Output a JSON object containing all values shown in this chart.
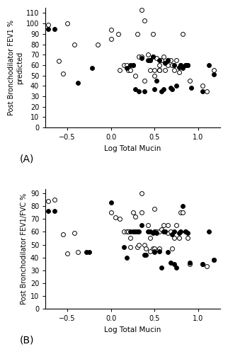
{
  "plot_A": {
    "xlabel": "Log Total Mucin",
    "ylabel": "Post Bronchodilator FEV1 %\npredicted",
    "xlim": [
      -0.75,
      1.25
    ],
    "ylim": [
      0,
      115
    ],
    "yticks": [
      0,
      10,
      20,
      30,
      40,
      50,
      60,
      70,
      80,
      90,
      100,
      110
    ],
    "xticks": [
      -0.5,
      0,
      0.5,
      1.0
    ],
    "ss_x": [
      -0.72,
      -0.65,
      -0.38,
      -0.22,
      0.18,
      0.22,
      0.25,
      0.28,
      0.32,
      0.35,
      0.38,
      0.42,
      0.45,
      0.48,
      0.5,
      0.52,
      0.55,
      0.58,
      0.6,
      0.62,
      0.65,
      0.68,
      0.7,
      0.72,
      0.75,
      0.78,
      0.8,
      0.82,
      0.85,
      0.88,
      0.92,
      1.05,
      1.12,
      1.18
    ],
    "ss_y": [
      95,
      95,
      43,
      57,
      57,
      60,
      60,
      37,
      35,
      67,
      35,
      65,
      65,
      68,
      37,
      45,
      65,
      35,
      37,
      62,
      65,
      38,
      37,
      60,
      40,
      58,
      60,
      57,
      60,
      60,
      38,
      35,
      60,
      51
    ],
    "is_x": [
      -0.72,
      -0.6,
      -0.55,
      -0.5,
      -0.42,
      -0.15,
      0.0,
      0.0,
      0.08,
      0.1,
      0.15,
      0.18,
      0.2,
      0.22,
      0.25,
      0.28,
      0.3,
      0.32,
      0.35,
      0.38,
      0.38,
      0.42,
      0.45,
      0.45,
      0.48,
      0.5,
      0.5,
      0.52,
      0.55,
      0.55,
      0.58,
      0.6,
      0.62,
      0.65,
      0.65,
      0.68,
      0.7,
      0.72,
      0.75,
      0.78,
      0.8,
      0.82,
      0.85,
      0.88,
      0.9,
      1.05,
      1.1,
      1.18,
      0.35,
      0.48,
      0.55
    ],
    "is_y": [
      99,
      64,
      52,
      100,
      80,
      80,
      94,
      85,
      90,
      55,
      60,
      60,
      55,
      55,
      60,
      50,
      90,
      68,
      68,
      45,
      103,
      70,
      65,
      55,
      68,
      55,
      50,
      67,
      55,
      55,
      65,
      68,
      55,
      60,
      65,
      65,
      60,
      55,
      65,
      53,
      60,
      90,
      60,
      60,
      45,
      40,
      35,
      55,
      113,
      90,
      60
    ]
  },
  "plot_B": {
    "xlabel": "Log Total Mucin",
    "ylabel": "Post Bronchodilator FEV1/FVC %",
    "xlim": [
      -0.75,
      1.25
    ],
    "ylim": [
      0,
      93
    ],
    "yticks": [
      0,
      10,
      20,
      30,
      40,
      50,
      60,
      70,
      80,
      90
    ],
    "xticks": [
      -0.5,
      0,
      0.5,
      1.0
    ],
    "ss_x": [
      -0.72,
      -0.65,
      -0.28,
      -0.25,
      0.0,
      0.15,
      0.18,
      0.22,
      0.25,
      0.28,
      0.3,
      0.32,
      0.35,
      0.38,
      0.4,
      0.42,
      0.45,
      0.48,
      0.5,
      0.5,
      0.52,
      0.55,
      0.58,
      0.6,
      0.62,
      0.65,
      0.68,
      0.7,
      0.72,
      0.72,
      0.75,
      0.78,
      0.8,
      0.82,
      0.85,
      0.88,
      0.9,
      1.05,
      1.12,
      1.18
    ],
    "ss_y": [
      76,
      76,
      44,
      44,
      83,
      48,
      40,
      60,
      60,
      60,
      60,
      60,
      65,
      42,
      42,
      60,
      60,
      59,
      60,
      44,
      59,
      45,
      32,
      60,
      60,
      44,
      36,
      58,
      60,
      35,
      32,
      59,
      60,
      80,
      60,
      59,
      36,
      35,
      60,
      38
    ],
    "is_x": [
      -0.72,
      -0.65,
      -0.55,
      -0.5,
      -0.42,
      -0.38,
      0.0,
      0.05,
      0.1,
      0.15,
      0.18,
      0.2,
      0.22,
      0.22,
      0.25,
      0.28,
      0.3,
      0.32,
      0.35,
      0.38,
      0.4,
      0.42,
      0.45,
      0.45,
      0.48,
      0.5,
      0.5,
      0.52,
      0.55,
      0.55,
      0.58,
      0.6,
      0.62,
      0.65,
      0.65,
      0.68,
      0.7,
      0.72,
      0.75,
      0.78,
      0.8,
      0.82,
      0.85,
      0.88,
      0.9,
      1.05,
      1.1,
      1.18,
      0.35,
      0.5
    ],
    "is_y": [
      84,
      85,
      58,
      43,
      59,
      44,
      75,
      71,
      70,
      60,
      60,
      60,
      55,
      48,
      75,
      72,
      48,
      50,
      75,
      50,
      47,
      65,
      55,
      45,
      47,
      47,
      45,
      60,
      60,
      47,
      62,
      65,
      60,
      59,
      65,
      60,
      47,
      55,
      65,
      55,
      75,
      75,
      60,
      55,
      35,
      35,
      33,
      38,
      90,
      78
    ]
  },
  "marker_size": 18,
  "linewidth": 0.7,
  "background": "white",
  "label_A": "(A)",
  "label_B": "(B)"
}
